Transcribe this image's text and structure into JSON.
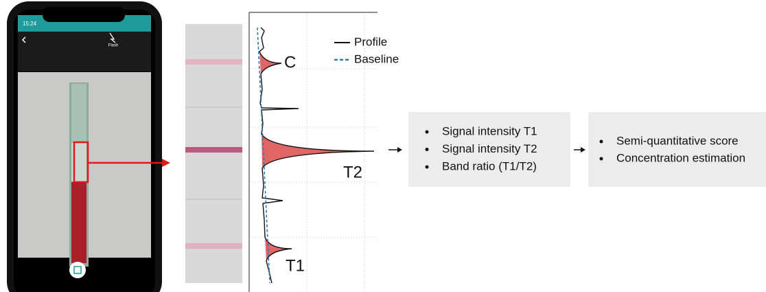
{
  "phone": {
    "time": "15:24",
    "flash_label": "Flash"
  },
  "plot": {
    "legend": [
      "Profile",
      "Baseline"
    ],
    "peak_labels": [
      "C",
      "T2",
      "T1"
    ]
  },
  "features_box": {
    "items": [
      "Signal intensity T1",
      "Signal intensity T2",
      "Band ratio (T1/T2)"
    ]
  },
  "output_box": {
    "items": [
      "Semi-quantitative score",
      "Concentration estimation"
    ]
  }
}
